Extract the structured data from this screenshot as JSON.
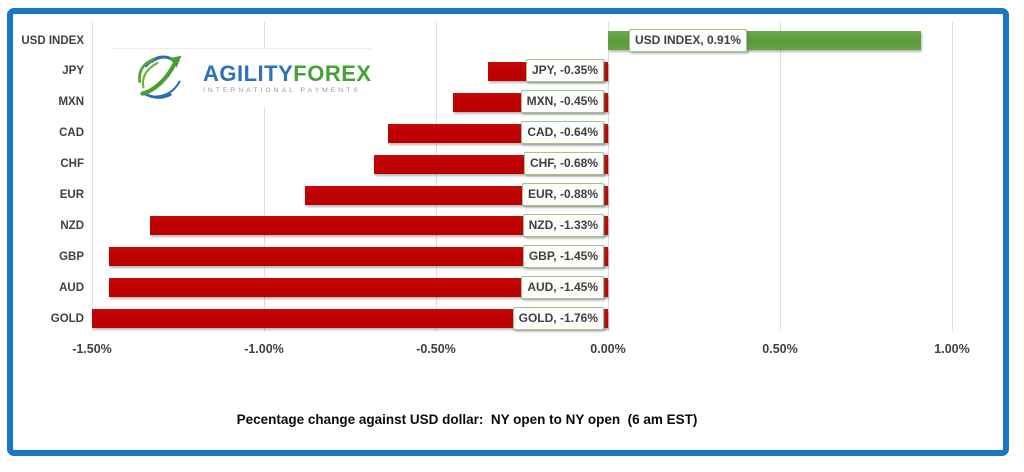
{
  "chart_data": {
    "type": "bar",
    "orientation": "horizontal",
    "caption": "Pecentage change against USD dollar:  NY open to NY open  (6 am EST)",
    "categories": [
      "USD INDEX",
      "JPY",
      "MXN",
      "CAD",
      "CHF",
      "EUR",
      "NZD",
      "GBP",
      "AUD",
      "GOLD"
    ],
    "values": [
      0.91,
      -0.35,
      -0.45,
      -0.64,
      -0.68,
      -0.88,
      -1.33,
      -1.45,
      -1.45,
      -1.76
    ],
    "data_labels": [
      "USD INDEX, 0.91%",
      "JPY, -0.35%",
      "MXN, -0.45%",
      "CAD, -0.64%",
      "CHF, -0.68%",
      "EUR, -0.88%",
      "NZD, -1.33%",
      "GBP, -1.45%",
      "AUD, -1.45%",
      "GOLD, -1.76%"
    ],
    "xlim": [
      -1.5,
      1.0
    ],
    "xtick_values": [
      -1.5,
      -1.0,
      -0.5,
      0,
      0.5,
      1.0
    ],
    "xtick_labels": [
      "-1.50%",
      "-1.00%",
      "-0.50%",
      "0.00%",
      "0.50%",
      "1.00%"
    ],
    "bar_colors": {
      "positive": "#5E9B3C",
      "negative": "#C00000"
    },
    "label_box": {
      "background": "#FDFDFD",
      "border": "#9FC58B",
      "text_color": "#404040"
    },
    "gridline_color": "#DEDEDE",
    "grid": "vertical-only",
    "legend": "none"
  },
  "logo": {
    "icon": "globe-arrow-icon",
    "brand_part1": "AGILITY",
    "brand_part2": "FOREX",
    "tagline": "INTERNATIONAL PAYMENTS",
    "colors": {
      "brand_part1": "#2B72B8",
      "brand_part2": "#45A335",
      "tagline": "#9B9B9B"
    }
  },
  "frame": {
    "border_color": "#1878C6"
  }
}
